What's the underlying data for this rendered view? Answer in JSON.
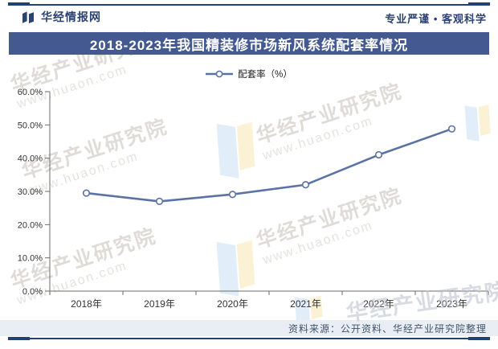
{
  "header": {
    "brand": "华经情报网",
    "tagline": "专业严谨 • 客观科学"
  },
  "title": "2018-2023年我国精装修市场新风系统配套率情况",
  "legend": {
    "label": "配套率（%）"
  },
  "chart_data": {
    "type": "line",
    "categories": [
      "2018年",
      "2019年",
      "2020年",
      "2021年",
      "2022年",
      "2023年"
    ],
    "series": [
      {
        "name": "配套率（%）",
        "values": [
          29.5,
          27.0,
          29.1,
          32.0,
          41.0,
          48.8
        ]
      }
    ],
    "title": "2018-2023年我国精装修市场新风系统配套率情况",
    "xlabel": "",
    "ylabel": "",
    "ylim": [
      0,
      60
    ],
    "ytick_step": 10,
    "ytick_suffix": "%",
    "grid": false,
    "legend_position": "top",
    "line_color": "#5B73A4",
    "marker": "open-circle"
  },
  "source_note": "资料来源：公开资料、华经产业研究院整理",
  "watermark": {
    "text": "华经产业研究院",
    "url": "www.huaon.com"
  },
  "colors": {
    "frame_navy": "#24406E",
    "title_bar_bg": "#44598F",
    "header_text": "#2C4372",
    "line": "#5B73A4",
    "source_bar_bg": "#E9EDF4",
    "source_text": "#44546A",
    "watermark_gray": "#DFDCD7",
    "axis": "#6B6B6B",
    "tick_label": "#333333"
  }
}
